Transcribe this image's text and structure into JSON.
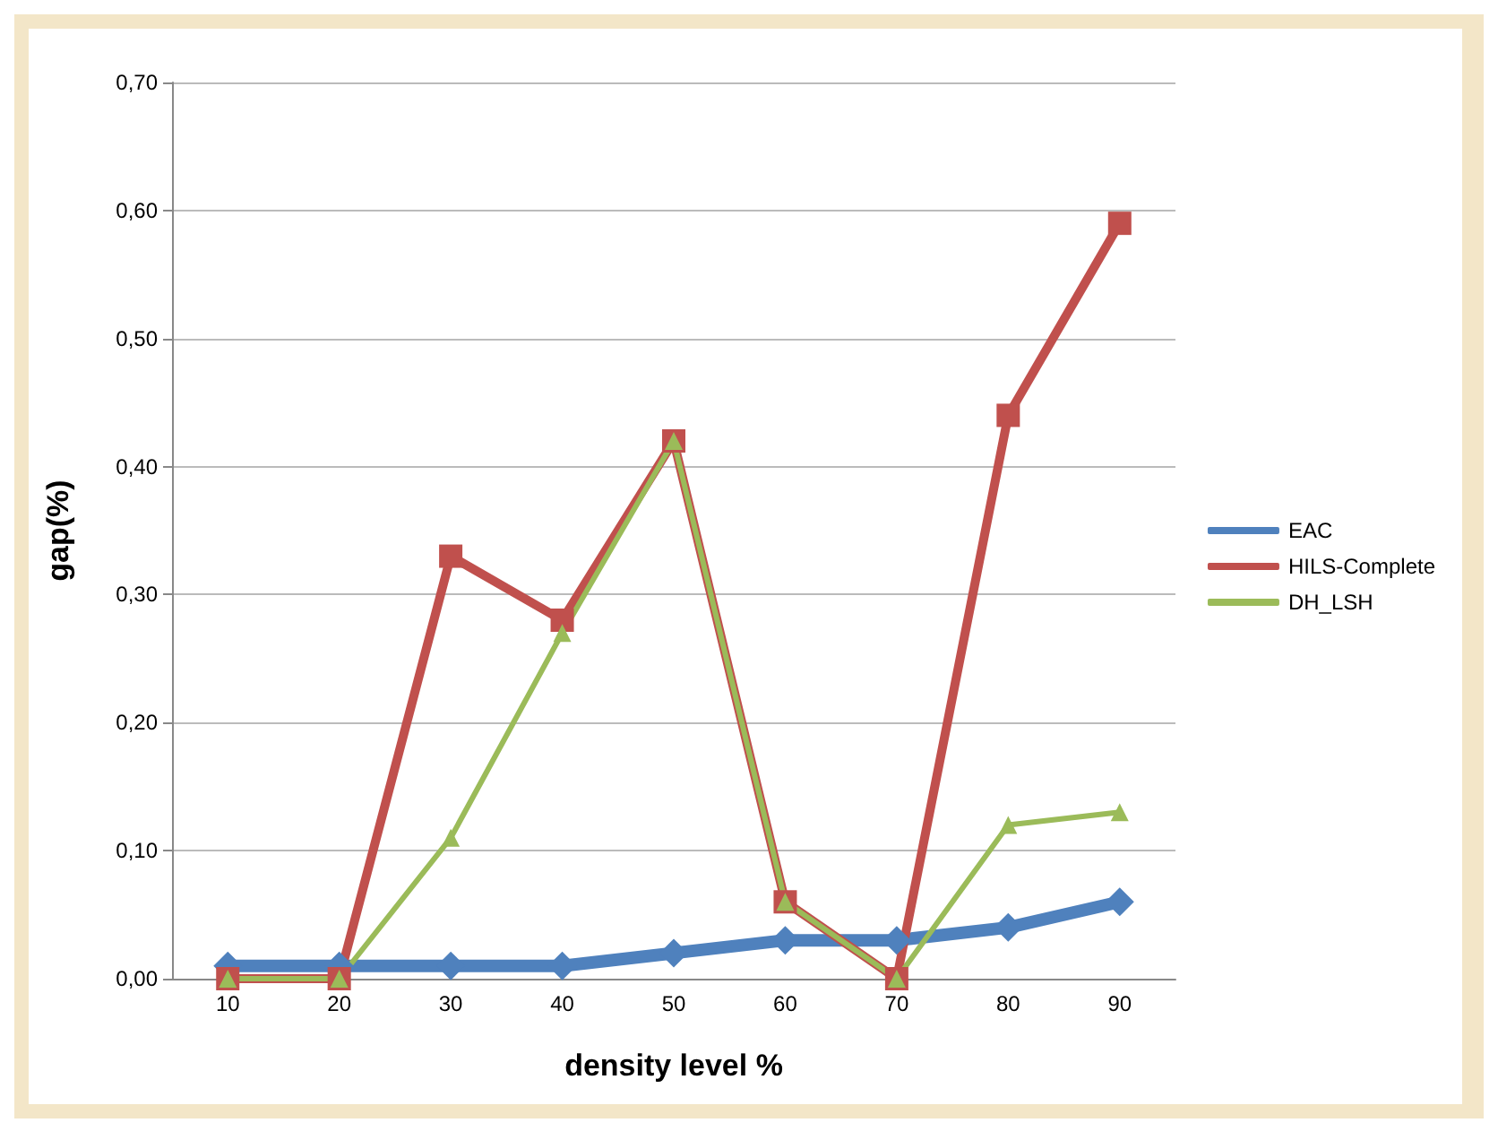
{
  "chart_data": {
    "type": "line",
    "xlabel": "density level %",
    "ylabel": "gap(%)",
    "categories": [
      "10",
      "20",
      "30",
      "40",
      "50",
      "60",
      "70",
      "80",
      "90"
    ],
    "series": [
      {
        "name": "EAC",
        "color": "#4f81bd",
        "marker": "diamond",
        "values": [
          0.01,
          0.01,
          0.01,
          0.01,
          0.02,
          0.03,
          0.03,
          0.04,
          0.06
        ]
      },
      {
        "name": "HILS-Complete",
        "color": "#c0504d",
        "marker": "square",
        "values": [
          0,
          0,
          0.33,
          0.28,
          0.42,
          0.06,
          0,
          0.44,
          0.59
        ]
      },
      {
        "name": "DH_LSH",
        "color": "#9bbb59",
        "marker": "triangle",
        "values": [
          0,
          0,
          0.11,
          0.27,
          0.42,
          0.06,
          0,
          0.12,
          0.13
        ]
      }
    ],
    "ylim": [
      0,
      0.7
    ],
    "yticks": [
      {
        "value": 0,
        "label": "0,00"
      },
      {
        "value": 0.1,
        "label": "0,10"
      },
      {
        "value": 0.2,
        "label": "0,20"
      },
      {
        "value": 0.3,
        "label": "0,30"
      },
      {
        "value": 0.4,
        "label": "0,40"
      },
      {
        "value": 0.5,
        "label": "0,50"
      },
      {
        "value": 0.6,
        "label": "0,60"
      },
      {
        "value": 0.7,
        "label": "0,70"
      }
    ],
    "grid": "y",
    "legend": "right",
    "line_style": "solid"
  }
}
